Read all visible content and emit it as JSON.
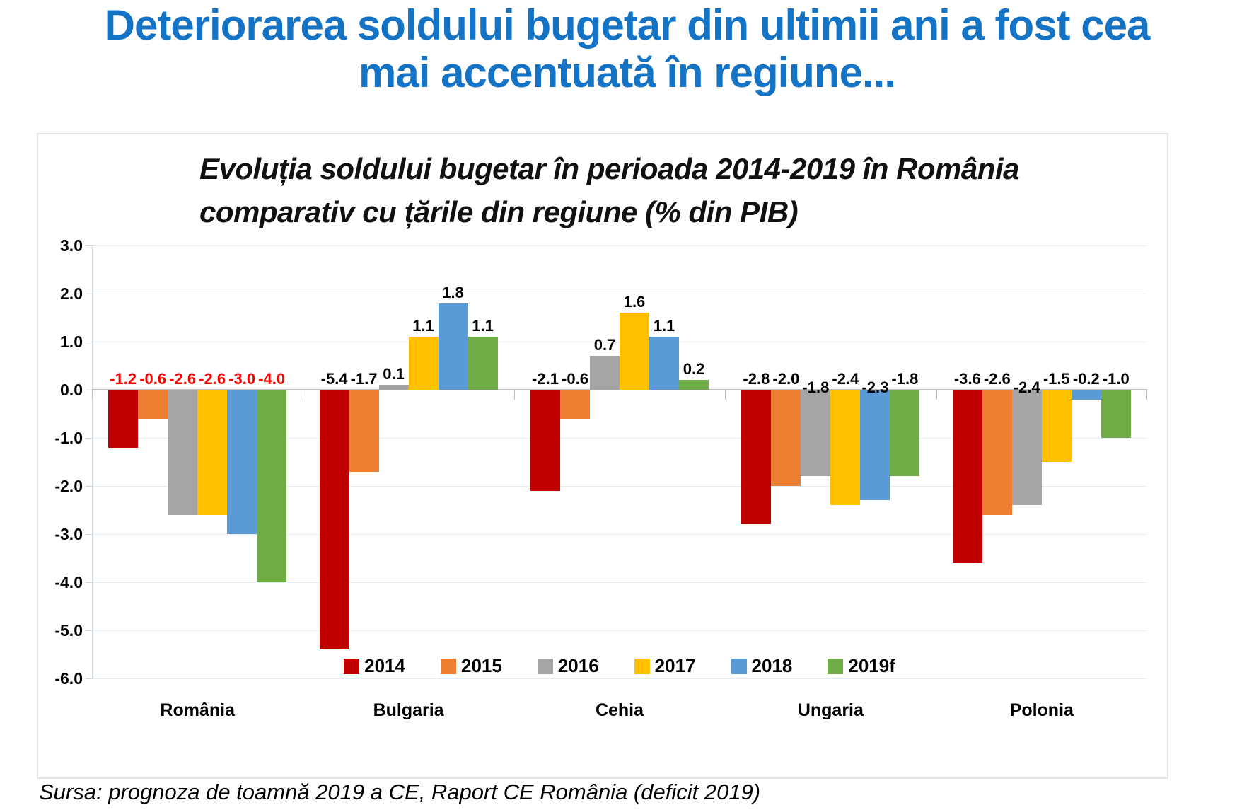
{
  "page": {
    "title_lines": [
      "Deteriorarea soldului bugetar din ultimii ani a fost cea",
      "mai accentuată în regiune..."
    ],
    "title_color": "#1573C5",
    "source": "Sursa: prognoza de toamnă 2019 a CE, Raport CE România (deficit 2019)"
  },
  "chart_data": {
    "type": "bar",
    "title_lines": [
      "Evoluția soldului bugetar în perioada 2014-2019 în România",
      "comparativ cu țările din regiune (% din PIB)"
    ],
    "categories": [
      "România",
      "Bulgaria",
      "Cehia",
      "Ungaria",
      "Polonia"
    ],
    "series": [
      {
        "name": "2014",
        "color": "#C00000",
        "values": [
          -1.2,
          -5.4,
          -2.1,
          -2.8,
          -3.6
        ]
      },
      {
        "name": "2015",
        "color": "#ED7D31",
        "values": [
          -0.6,
          -1.7,
          -0.6,
          -2.0,
          -2.6
        ]
      },
      {
        "name": "2016",
        "color": "#A5A5A5",
        "values": [
          -2.6,
          0.1,
          0.7,
          -1.8,
          -2.4
        ]
      },
      {
        "name": "2017",
        "color": "#FFC000",
        "values": [
          -2.6,
          1.1,
          1.6,
          -2.4,
          -1.5
        ]
      },
      {
        "name": "2018",
        "color": "#5B9BD5",
        "values": [
          -3.0,
          1.8,
          1.1,
          -2.3,
          -0.2
        ]
      },
      {
        "name": "2019f",
        "color": "#70AD47",
        "values": [
          -4.0,
          1.1,
          0.2,
          -1.8,
          -1.0
        ]
      }
    ],
    "ylim": [
      -6,
      3
    ],
    "ytick_labels": [
      "3.0",
      "2.0",
      "1.0",
      "0.0",
      "-1.0",
      "-2.0",
      "-3.0",
      "-4.0",
      "-5.0",
      "-6.0"
    ],
    "grid": true,
    "legend_position": "bottom-inside",
    "data_label_decimals": 1,
    "label_color_default": "#000000",
    "label_color_highlight": "#FF0000",
    "highlight_label_category": 0,
    "label_nudges": [
      {
        "category": 3,
        "series": 2,
        "dy": 12
      },
      {
        "category": 3,
        "series": 4,
        "dy": 12
      },
      {
        "category": 4,
        "series": 2,
        "dy": 12
      }
    ]
  }
}
